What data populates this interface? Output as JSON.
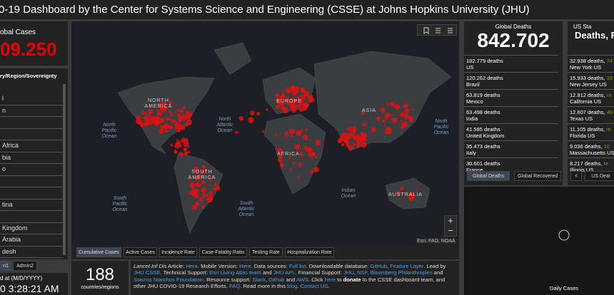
{
  "header": {
    "title": "0-19 Dashboard by the Center for Systems Science and Engineering (CSSE) at Johns Hopkins University (JHU)"
  },
  "global_cases": {
    "label": "obal Cases",
    "value": "09.250"
  },
  "country_list": {
    "header": "ry/Region/Sovereignty",
    "rows": [
      "l",
      "n",
      null,
      null,
      "Africa",
      "bia",
      "o",
      null,
      null,
      "tina",
      null,
      "Kingdom",
      "Arabia",
      "desh"
    ]
  },
  "admin_tabs": [
    "n1",
    "Admin2"
  ],
  "last_updated": {
    "label": "d at (M/D/YYYY)",
    "value": "0 3:28:21 AM"
  },
  "map": {
    "labels": [
      "NORTH\nAMERICA",
      "North\nPacific\nOcean",
      "North\nAtlantic\nOcean",
      "SOUTH\nAMERICA",
      "South\nPacific\nOcean",
      "South\nAtlantic\nOcean",
      "EUROPE",
      "AFRICA",
      "ASIA",
      "North\nPacific\nOcean",
      "Indian\nOcean",
      "AUSTRALIA"
    ],
    "attribution": "Esri, FAO, NOAA"
  },
  "map_tabs": [
    "Cumulative Cases",
    "Active Cases",
    "Incidence Rate",
    "Case-Fatality Ratio",
    "Testing Rate",
    "Hospitalization Rate"
  ],
  "country_count": {
    "value": 188,
    "label": "countries/regions"
  },
  "info": [
    {
      "text": "Lancet Inf Dis",
      "italic": true
    },
    {
      "text": " Article: "
    },
    {
      "text": "Here",
      "link": true
    },
    {
      "text": ". Mobile Version: "
    },
    {
      "text": "Here",
      "link": true
    },
    {
      "text": ". Data sources: "
    },
    {
      "text": "Full list",
      "link": true
    },
    {
      "text": ". Downloadable database: "
    },
    {
      "text": "GitHub",
      "link": true
    },
    {
      "text": ", "
    },
    {
      "text": "Feature Layer",
      "link": true
    },
    {
      "text": ". Lead by "
    },
    {
      "text": "JHU CSSE",
      "link": true
    },
    {
      "text": ". Technical Support: "
    },
    {
      "text": "Esri Living Atlas team",
      "link": true
    },
    {
      "text": " and "
    },
    {
      "text": "JHU APL",
      "link": true
    },
    {
      "text": ". Financial Support: "
    },
    {
      "text": "JHU",
      "link": true
    },
    {
      "text": ", "
    },
    {
      "text": "NSF",
      "link": true
    },
    {
      "text": ", "
    },
    {
      "text": "Bloomberg Philanthropies",
      "link": true
    },
    {
      "text": " and "
    },
    {
      "text": "Stavros Niarchos Foundation",
      "link": true
    },
    {
      "text": ". Resource support: "
    },
    {
      "text": "Slack",
      "link": true
    },
    {
      "text": ", "
    },
    {
      "text": "Github",
      "link": true
    },
    {
      "text": " and "
    },
    {
      "text": "AWS",
      "link": true
    },
    {
      "text": ". Click "
    },
    {
      "text": "here",
      "link": true
    },
    {
      "text": " to "
    },
    {
      "text": "donate",
      "bold": true
    },
    {
      "text": " to the CSSE dashboard team, and other JHU COVID-19 Research Efforts. "
    },
    {
      "text": "FAQ",
      "link": true
    },
    {
      "text": ". Read more in this "
    },
    {
      "text": "blog",
      "link": true
    },
    {
      "text": ". "
    },
    {
      "text": "Contact US",
      "link": true
    },
    {
      "text": "."
    }
  ],
  "global_deaths": {
    "title": "Global Deaths",
    "value": "842.702",
    "rows": [
      {
        "value": "182.779 deaths",
        "place": "US"
      },
      {
        "value": "120.262 deaths",
        "place": "Brazil"
      },
      {
        "value": "63.819 deaths",
        "place": "Mexico"
      },
      {
        "value": "63.498 deaths",
        "place": "India"
      },
      {
        "value": "41.585 deaths",
        "place": "United Kingdom"
      },
      {
        "value": "35.473 deaths",
        "place": "Italy"
      },
      {
        "value": "30.601 deaths",
        "place": "France"
      }
    ],
    "tabs": [
      "Global Deaths",
      "Global Recovered"
    ]
  },
  "us_state": {
    "title": "US Sta",
    "subtitle": "Deaths, R",
    "rows": [
      {
        "deaths": "32.938 deaths, ",
        "rest": "74",
        "place": "New York US"
      },
      {
        "deaths": "15.933 deaths, ",
        "rest": "33",
        "place": "New Jersey US"
      },
      {
        "deaths": "12.912 deaths, ",
        "rest": "re",
        "place": "California US"
      },
      {
        "deaths": "12.607 deaths, ",
        "rest": "49",
        "place": "Texas US"
      },
      {
        "deaths": "11.105 deaths, ",
        "rest": "re",
        "place": "Florida US"
      },
      {
        "deaths": "9.036 deaths, ",
        "rest": "10",
        "place": "Massachusetts US"
      },
      {
        "deaths": "8.217 deaths, ",
        "rest": "re",
        "place": "Illinois US"
      }
    ],
    "tab": "US Deat"
  },
  "daily_cases": {
    "label": "Daily Cases"
  }
}
